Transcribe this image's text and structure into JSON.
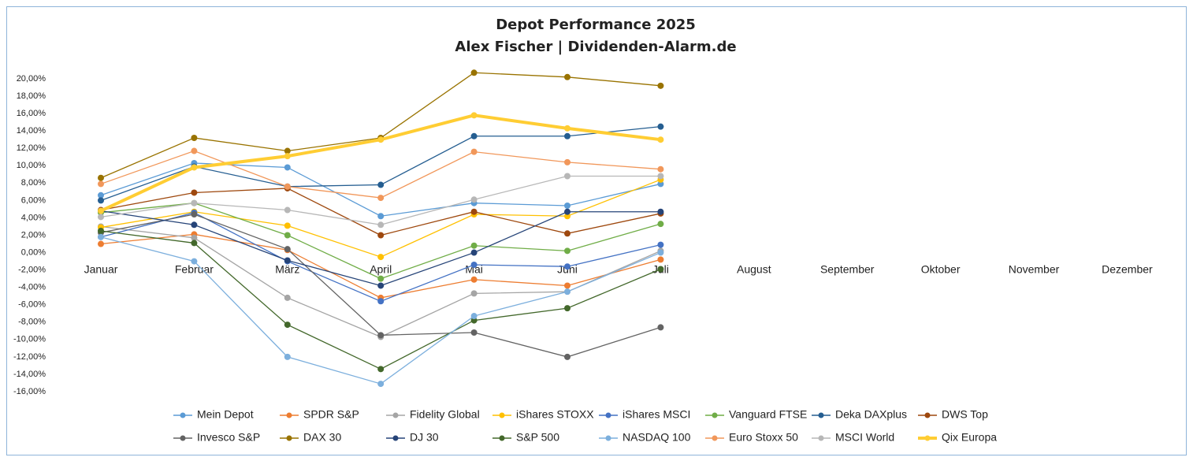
{
  "chart_data": {
    "type": "line",
    "title": "Depot Performance 2025",
    "subtitle": "Alex Fischer | Dividenden-Alarm.de",
    "categories": [
      "Januar",
      "Februar",
      "März",
      "April",
      "Mai",
      "Juni",
      "Juli",
      "August",
      "September",
      "Oktober",
      "November",
      "Dezember"
    ],
    "ylim": [
      -16,
      20
    ],
    "yticks": [
      {
        "value": 20,
        "label": "20,00%"
      },
      {
        "value": 18,
        "label": "18,00%"
      },
      {
        "value": 16,
        "label": "16,00%"
      },
      {
        "value": 14,
        "label": "14,00%"
      },
      {
        "value": 12,
        "label": "12,00%"
      },
      {
        "value": 10,
        "label": "10,00%"
      },
      {
        "value": 8,
        "label": "8,00%"
      },
      {
        "value": 6,
        "label": "6,00%"
      },
      {
        "value": 4,
        "label": "4,00%"
      },
      {
        "value": 2,
        "label": "2,00%"
      },
      {
        "value": 0,
        "label": "0,00%"
      },
      {
        "value": -2,
        "label": "-2,00%"
      },
      {
        "value": -4,
        "label": "-4,00%"
      },
      {
        "value": -6,
        "label": "-6,00%"
      },
      {
        "value": -8,
        "label": "-8,00%"
      },
      {
        "value": -10,
        "label": "-10,00%"
      },
      {
        "value": -12,
        "label": "-12,00%"
      },
      {
        "value": -14,
        "label": "-14,00%"
      },
      {
        "value": -16,
        "label": "-16,00%"
      }
    ],
    "grid": false,
    "legend": "bottom",
    "series": [
      {
        "name": "Mein Depot",
        "color": "#5b9bd5",
        "values": [
          6.6,
          10.3,
          9.8,
          4.2,
          5.7,
          5.4,
          7.9,
          null,
          null,
          null,
          null,
          null
        ]
      },
      {
        "name": "SPDR S&P",
        "color": "#ed7d31",
        "values": [
          1.0,
          2.1,
          0.3,
          -5.2,
          -3.1,
          -3.8,
          -0.8,
          null,
          null,
          null,
          null,
          null
        ]
      },
      {
        "name": "Fidelity Global",
        "color": "#a5a5a5",
        "values": [
          3.0,
          1.7,
          -5.2,
          -9.7,
          -4.7,
          -4.5,
          0.2,
          null,
          null,
          null,
          null,
          null
        ]
      },
      {
        "name": "iShares STOXX",
        "color": "#ffc000",
        "values": [
          2.9,
          4.7,
          3.1,
          -0.5,
          4.4,
          4.2,
          8.4,
          null,
          null,
          null,
          null,
          null
        ]
      },
      {
        "name": "iShares MSCI",
        "color": "#4472c4",
        "values": [
          1.8,
          4.6,
          -1.0,
          -5.6,
          -1.4,
          -1.6,
          0.9,
          null,
          null,
          null,
          null,
          null
        ]
      },
      {
        "name": "Vanguard FTSE",
        "color": "#70ad47",
        "values": [
          4.6,
          5.7,
          2.0,
          -3.0,
          0.8,
          0.2,
          3.3,
          null,
          null,
          null,
          null,
          null
        ]
      },
      {
        "name": "Deka DAXplus",
        "color": "#255e91",
        "values": [
          6.0,
          9.9,
          7.6,
          7.8,
          13.4,
          13.4,
          14.5,
          null,
          null,
          null,
          null,
          null
        ]
      },
      {
        "name": "DWS Top",
        "color": "#9e480e",
        "values": [
          4.9,
          6.9,
          7.4,
          2.0,
          4.7,
          2.2,
          4.5,
          null,
          null,
          null,
          null,
          null
        ]
      },
      {
        "name": "Invesco S&P",
        "color": "#636363",
        "values": [
          2.3,
          4.4,
          0.4,
          -9.5,
          -9.2,
          -12.0,
          -8.6,
          null,
          null,
          null,
          null,
          null
        ]
      },
      {
        "name": "DAX 30",
        "color": "#997300",
        "values": [
          8.6,
          13.2,
          11.7,
          13.2,
          20.7,
          20.2,
          19.2,
          null,
          null,
          null,
          null,
          null
        ]
      },
      {
        "name": "DJ 30",
        "color": "#264478",
        "values": [
          4.8,
          3.2,
          -0.9,
          -3.8,
          0.0,
          4.7,
          4.7,
          null,
          null,
          null,
          null,
          null
        ]
      },
      {
        "name": "S&P 500",
        "color": "#43682b",
        "values": [
          2.5,
          1.1,
          -8.3,
          -13.4,
          -7.8,
          -6.4,
          -1.9,
          null,
          null,
          null,
          null,
          null
        ]
      },
      {
        "name": "NASDAQ 100",
        "color": "#7cafdd",
        "values": [
          1.8,
          -1.0,
          -12.0,
          -15.1,
          -7.3,
          -4.5,
          0.0,
          null,
          null,
          null,
          null,
          null
        ]
      },
      {
        "name": "Euro Stoxx 50",
        "color": "#f1975a",
        "values": [
          7.9,
          11.7,
          7.6,
          6.3,
          11.6,
          10.4,
          9.6,
          null,
          null,
          null,
          null,
          null
        ]
      },
      {
        "name": "MSCI World",
        "color": "#b7b7b7",
        "values": [
          4.1,
          5.7,
          4.9,
          3.2,
          6.1,
          8.8,
          8.8,
          null,
          null,
          null,
          null,
          null
        ]
      },
      {
        "name": "Qix Europa",
        "color": "#ffcd33",
        "values": [
          4.8,
          9.8,
          11.1,
          13.0,
          15.8,
          14.3,
          13.0,
          null,
          null,
          null,
          null,
          null
        ]
      }
    ]
  }
}
